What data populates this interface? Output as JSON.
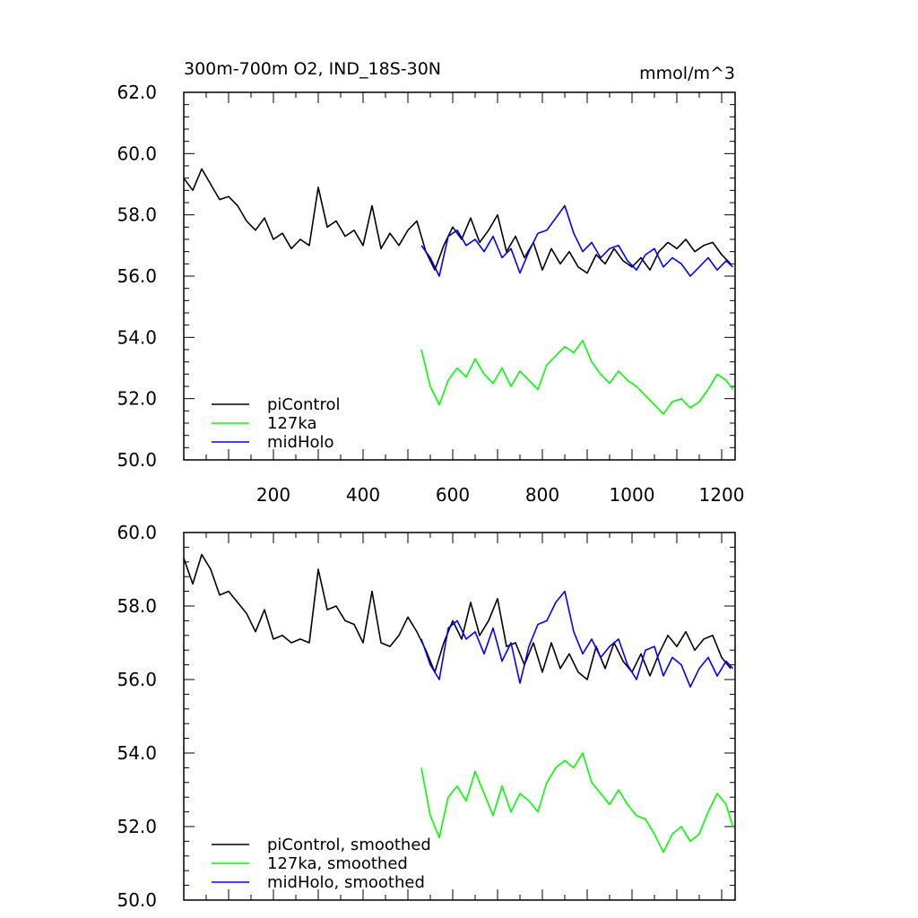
{
  "chart_data": [
    {
      "type": "line",
      "title": "300m-700m O2, IND_18S-30N",
      "units": "mmol/m^3",
      "xlim": [
        0,
        1230
      ],
      "ylim": [
        50,
        62
      ],
      "xticks": [
        200,
        400,
        600,
        800,
        1000,
        1200
      ],
      "xtick_labels": [
        "200",
        "400",
        "600",
        "800",
        "1000",
        "1200"
      ],
      "yticks": [
        50,
        52,
        54,
        56,
        58,
        60,
        62
      ],
      "ytick_labels": [
        "50.0",
        "52.0",
        "54.0",
        "56.0",
        "58.0",
        "60.0",
        "62.0"
      ],
      "legend_position": "bottom-left",
      "series": [
        {
          "name": "piControl",
          "color": "#000000",
          "x": [
            0,
            20,
            40,
            60,
            80,
            100,
            120,
            140,
            160,
            180,
            200,
            220,
            240,
            260,
            280,
            300,
            320,
            340,
            360,
            380,
            400,
            420,
            440,
            460,
            480,
            500,
            520,
            540,
            560,
            580,
            600,
            620,
            640,
            660,
            680,
            700,
            720,
            740,
            760,
            780,
            800,
            820,
            840,
            860,
            880,
            900,
            920,
            940,
            960,
            980,
            1000,
            1020,
            1040,
            1060,
            1080,
            1100,
            1120,
            1140,
            1160,
            1180,
            1200,
            1220
          ],
          "y": [
            59.2,
            58.8,
            59.5,
            59.0,
            58.5,
            58.6,
            58.3,
            57.8,
            57.5,
            57.9,
            57.2,
            57.4,
            56.9,
            57.2,
            57.0,
            58.9,
            57.6,
            57.8,
            57.3,
            57.5,
            57.0,
            58.3,
            56.9,
            57.4,
            57.0,
            57.5,
            57.8,
            56.8,
            56.2,
            57.0,
            57.6,
            57.2,
            57.9,
            57.1,
            57.5,
            58.0,
            56.8,
            57.3,
            56.6,
            57.1,
            56.2,
            56.9,
            56.4,
            56.8,
            56.3,
            56.1,
            56.7,
            56.4,
            56.9,
            56.5,
            56.3,
            56.6,
            56.2,
            56.8,
            57.1,
            56.9,
            57.2,
            56.8,
            57.0,
            57.1,
            56.7,
            56.4
          ]
        },
        {
          "name": "127ka",
          "color": "#00ff00",
          "x": [
            530,
            550,
            570,
            590,
            610,
            630,
            650,
            670,
            690,
            710,
            730,
            750,
            770,
            790,
            810,
            830,
            850,
            870,
            890,
            910,
            930,
            950,
            970,
            990,
            1010,
            1030,
            1050,
            1070,
            1090,
            1110,
            1130,
            1150,
            1170,
            1190,
            1210,
            1225
          ],
          "y": [
            53.6,
            52.4,
            51.8,
            52.6,
            53.0,
            52.7,
            53.3,
            52.8,
            52.5,
            53.0,
            52.4,
            52.9,
            52.6,
            52.3,
            53.1,
            53.4,
            53.7,
            53.5,
            53.9,
            53.2,
            52.8,
            52.5,
            52.9,
            52.6,
            52.4,
            52.1,
            51.8,
            51.5,
            51.9,
            52.0,
            51.7,
            51.9,
            52.3,
            52.8,
            52.6,
            52.3
          ]
        },
        {
          "name": "midHolo",
          "color": "#0000ff",
          "x": [
            530,
            550,
            570,
            590,
            610,
            630,
            650,
            670,
            690,
            710,
            730,
            750,
            770,
            790,
            810,
            830,
            850,
            870,
            890,
            910,
            930,
            950,
            970,
            990,
            1010,
            1030,
            1050,
            1070,
            1090,
            1110,
            1130,
            1150,
            1170,
            1190,
            1210,
            1225
          ],
          "y": [
            57.0,
            56.6,
            56.0,
            57.3,
            57.5,
            57.0,
            57.2,
            56.8,
            57.3,
            56.6,
            56.9,
            56.1,
            56.8,
            57.4,
            57.5,
            57.9,
            58.3,
            57.4,
            56.8,
            57.1,
            56.6,
            56.9,
            57.0,
            56.5,
            56.2,
            56.7,
            56.9,
            56.3,
            56.6,
            56.4,
            56.0,
            56.3,
            56.6,
            56.2,
            56.5,
            56.3
          ]
        }
      ]
    },
    {
      "type": "line",
      "xlim": [
        0,
        1230
      ],
      "ylim": [
        50,
        60
      ],
      "yticks": [
        50,
        52,
        54,
        56,
        58,
        60
      ],
      "ytick_labels": [
        "50.0",
        "52.0",
        "54.0",
        "56.0",
        "58.0",
        "60.0"
      ],
      "legend_position": "bottom-left",
      "series": [
        {
          "name": "piControl, smoothed",
          "color": "#000000",
          "x": [
            0,
            20,
            40,
            60,
            80,
            100,
            120,
            140,
            160,
            180,
            200,
            220,
            240,
            260,
            280,
            300,
            320,
            340,
            360,
            380,
            400,
            420,
            440,
            460,
            480,
            500,
            520,
            540,
            560,
            580,
            600,
            620,
            640,
            660,
            680,
            700,
            720,
            740,
            760,
            780,
            800,
            820,
            840,
            860,
            880,
            900,
            920,
            940,
            960,
            980,
            1000,
            1020,
            1040,
            1060,
            1080,
            1100,
            1120,
            1140,
            1160,
            1180,
            1200,
            1220
          ],
          "y": [
            59.3,
            58.6,
            59.4,
            59.0,
            58.3,
            58.4,
            58.1,
            57.8,
            57.3,
            57.9,
            57.1,
            57.2,
            57.0,
            57.1,
            57.0,
            59.0,
            57.9,
            58.0,
            57.6,
            57.5,
            57.0,
            58.4,
            57.0,
            56.9,
            57.2,
            57.7,
            57.3,
            56.8,
            56.2,
            57.0,
            57.6,
            57.1,
            58.1,
            57.2,
            57.6,
            58.2,
            56.9,
            57.0,
            56.4,
            57.0,
            56.2,
            57.0,
            56.3,
            56.7,
            56.2,
            56.0,
            56.9,
            56.3,
            57.0,
            56.5,
            56.2,
            56.7,
            56.1,
            56.7,
            57.2,
            56.9,
            57.3,
            56.8,
            57.1,
            57.2,
            56.6,
            56.3
          ]
        },
        {
          "name": "127ka, smoothed",
          "color": "#00ff00",
          "x": [
            530,
            550,
            570,
            590,
            610,
            630,
            650,
            670,
            690,
            710,
            730,
            750,
            770,
            790,
            810,
            830,
            850,
            870,
            890,
            910,
            930,
            950,
            970,
            990,
            1010,
            1030,
            1050,
            1070,
            1090,
            1110,
            1130,
            1150,
            1170,
            1190,
            1210,
            1225
          ],
          "y": [
            53.6,
            52.3,
            51.7,
            52.8,
            53.1,
            52.7,
            53.5,
            52.9,
            52.3,
            53.1,
            52.4,
            52.9,
            52.7,
            52.4,
            53.2,
            53.6,
            53.8,
            53.6,
            54.0,
            53.2,
            52.9,
            52.6,
            53.0,
            52.6,
            52.3,
            52.2,
            51.8,
            51.3,
            51.8,
            52.0,
            51.6,
            51.8,
            52.4,
            52.9,
            52.6,
            52.0
          ]
        },
        {
          "name": "midHolo, smoothed",
          "color": "#0000ff",
          "x": [
            530,
            550,
            570,
            590,
            610,
            630,
            650,
            670,
            690,
            710,
            730,
            750,
            770,
            790,
            810,
            830,
            850,
            870,
            890,
            910,
            930,
            950,
            970,
            990,
            1010,
            1030,
            1050,
            1070,
            1090,
            1110,
            1130,
            1150,
            1170,
            1190,
            1210,
            1225
          ],
          "y": [
            57.1,
            56.4,
            56.0,
            57.4,
            57.6,
            57.1,
            57.3,
            56.7,
            57.4,
            56.5,
            57.0,
            55.9,
            56.9,
            57.5,
            57.6,
            58.1,
            58.4,
            57.3,
            56.7,
            57.1,
            56.6,
            56.9,
            57.1,
            56.4,
            56.0,
            56.8,
            56.9,
            56.1,
            56.6,
            56.4,
            55.8,
            56.3,
            56.6,
            56.1,
            56.5,
            56.3
          ]
        }
      ]
    }
  ]
}
